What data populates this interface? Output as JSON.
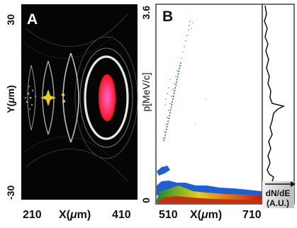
{
  "panel_a": {
    "label": "A",
    "y_axis_label_prefix": "Y(",
    "y_axis_label_mu": "μ",
    "y_axis_label_suffix": "m)",
    "x_axis_label_prefix": "X(",
    "x_axis_label_mu": "μ",
    "x_axis_label_suffix": "m)",
    "y_ticks": [
      "30",
      "-30"
    ],
    "x_ticks": [
      "210",
      "410"
    ]
  },
  "panel_b": {
    "label": "B",
    "y_axis_label": "p[MeV/c]",
    "y_ticks": [
      "3.6",
      "0"
    ],
    "x_ticks": [
      "510",
      "710"
    ],
    "x_axis_label_prefix": "X(",
    "x_axis_label_mu": "μ",
    "x_axis_label_suffix": "m)"
  },
  "side_panel": {
    "label_line1": "dN/dE",
    "label_line2": "(A.U.)"
  },
  "colors": {
    "laser_core": "#ff3b7a",
    "laser_ring": "#ff2222",
    "electron_yellow": "#e8d020",
    "beam_blue": "#1f5fd6",
    "beam_red": "#c43010"
  }
}
